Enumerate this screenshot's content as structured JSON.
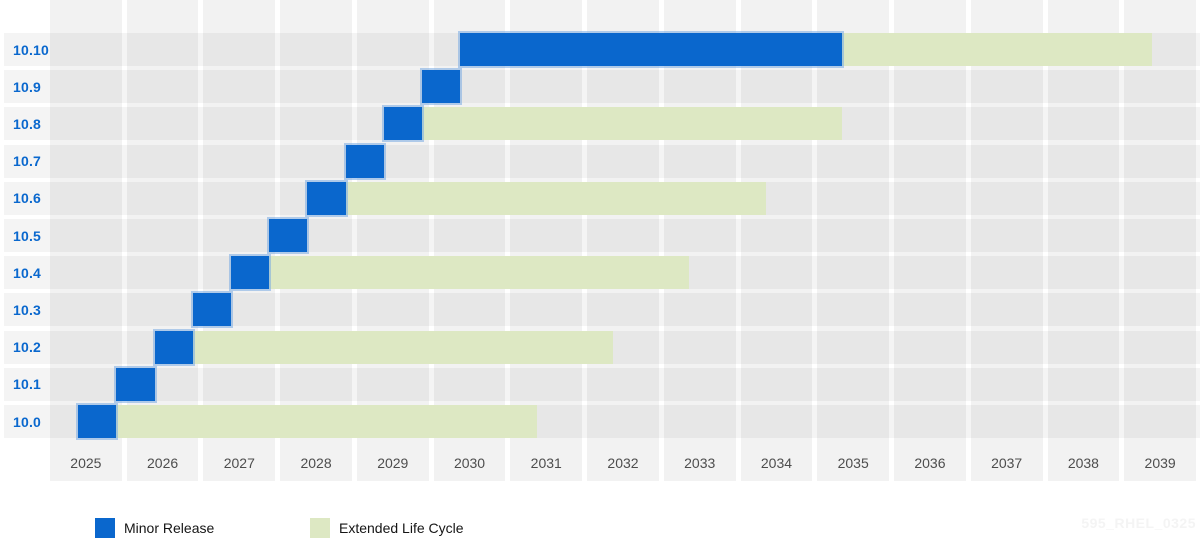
{
  "chart_data": {
    "type": "bar",
    "subtype": "gantt-timeline",
    "title": "",
    "x_axis": {
      "start_year": 2025,
      "end_year_inclusive": 2039,
      "span_years": 15,
      "ticks": [
        "2025",
        "2026",
        "2027",
        "2028",
        "2029",
        "2030",
        "2031",
        "2032",
        "2033",
        "2034",
        "2035",
        "2036",
        "2037",
        "2038",
        "2039"
      ]
    },
    "rows": [
      {
        "label": "10.10",
        "minor_release": {
          "start": 2030.37,
          "end": 2035.37
        },
        "extended_life_cycle": {
          "start": 2035.37,
          "end": 2039.42
        }
      },
      {
        "label": "10.9",
        "minor_release": {
          "start": 2029.87,
          "end": 2030.37
        },
        "extended_life_cycle": null
      },
      {
        "label": "10.8",
        "minor_release": {
          "start": 2029.37,
          "end": 2029.87
        },
        "extended_life_cycle": {
          "start": 2029.87,
          "end": 2035.37
        }
      },
      {
        "label": "10.7",
        "minor_release": {
          "start": 2028.87,
          "end": 2029.37
        },
        "extended_life_cycle": null
      },
      {
        "label": "10.6",
        "minor_release": {
          "start": 2028.37,
          "end": 2028.87
        },
        "extended_life_cycle": {
          "start": 2028.87,
          "end": 2034.37
        }
      },
      {
        "label": "10.5",
        "minor_release": {
          "start": 2027.87,
          "end": 2028.37
        },
        "extended_life_cycle": null
      },
      {
        "label": "10.4",
        "minor_release": {
          "start": 2027.37,
          "end": 2027.87
        },
        "extended_life_cycle": {
          "start": 2027.87,
          "end": 2033.37
        }
      },
      {
        "label": "10.3",
        "minor_release": {
          "start": 2026.87,
          "end": 2027.37
        },
        "extended_life_cycle": null
      },
      {
        "label": "10.2",
        "minor_release": {
          "start": 2026.37,
          "end": 2026.87
        },
        "extended_life_cycle": {
          "start": 2026.87,
          "end": 2032.37
        }
      },
      {
        "label": "10.1",
        "minor_release": {
          "start": 2025.87,
          "end": 2026.37
        },
        "extended_life_cycle": null
      },
      {
        "label": "10.0",
        "minor_release": {
          "start": 2025.37,
          "end": 2025.87
        },
        "extended_life_cycle": {
          "start": 2025.87,
          "end": 2031.37
        }
      }
    ],
    "legend": [
      {
        "label": "Minor Release",
        "color": "#0a67cd"
      },
      {
        "label": "Extended Life Cycle",
        "color": "#dde8c3"
      }
    ],
    "colors": {
      "minor_release": "#0a67cd",
      "minor_release_edge": "rgba(120,170,225,0.55)",
      "extended_life_cycle": "#dde8c3",
      "row_label_text": "#0a68ce",
      "axis_text": "#4d4d4d",
      "column_stripe": "#f2f2f2"
    },
    "grid": "vertical year columns with white separators, shaded horizontal row bands",
    "legend_position": "bottom-left"
  },
  "watermark": "595_RHEL_0325"
}
